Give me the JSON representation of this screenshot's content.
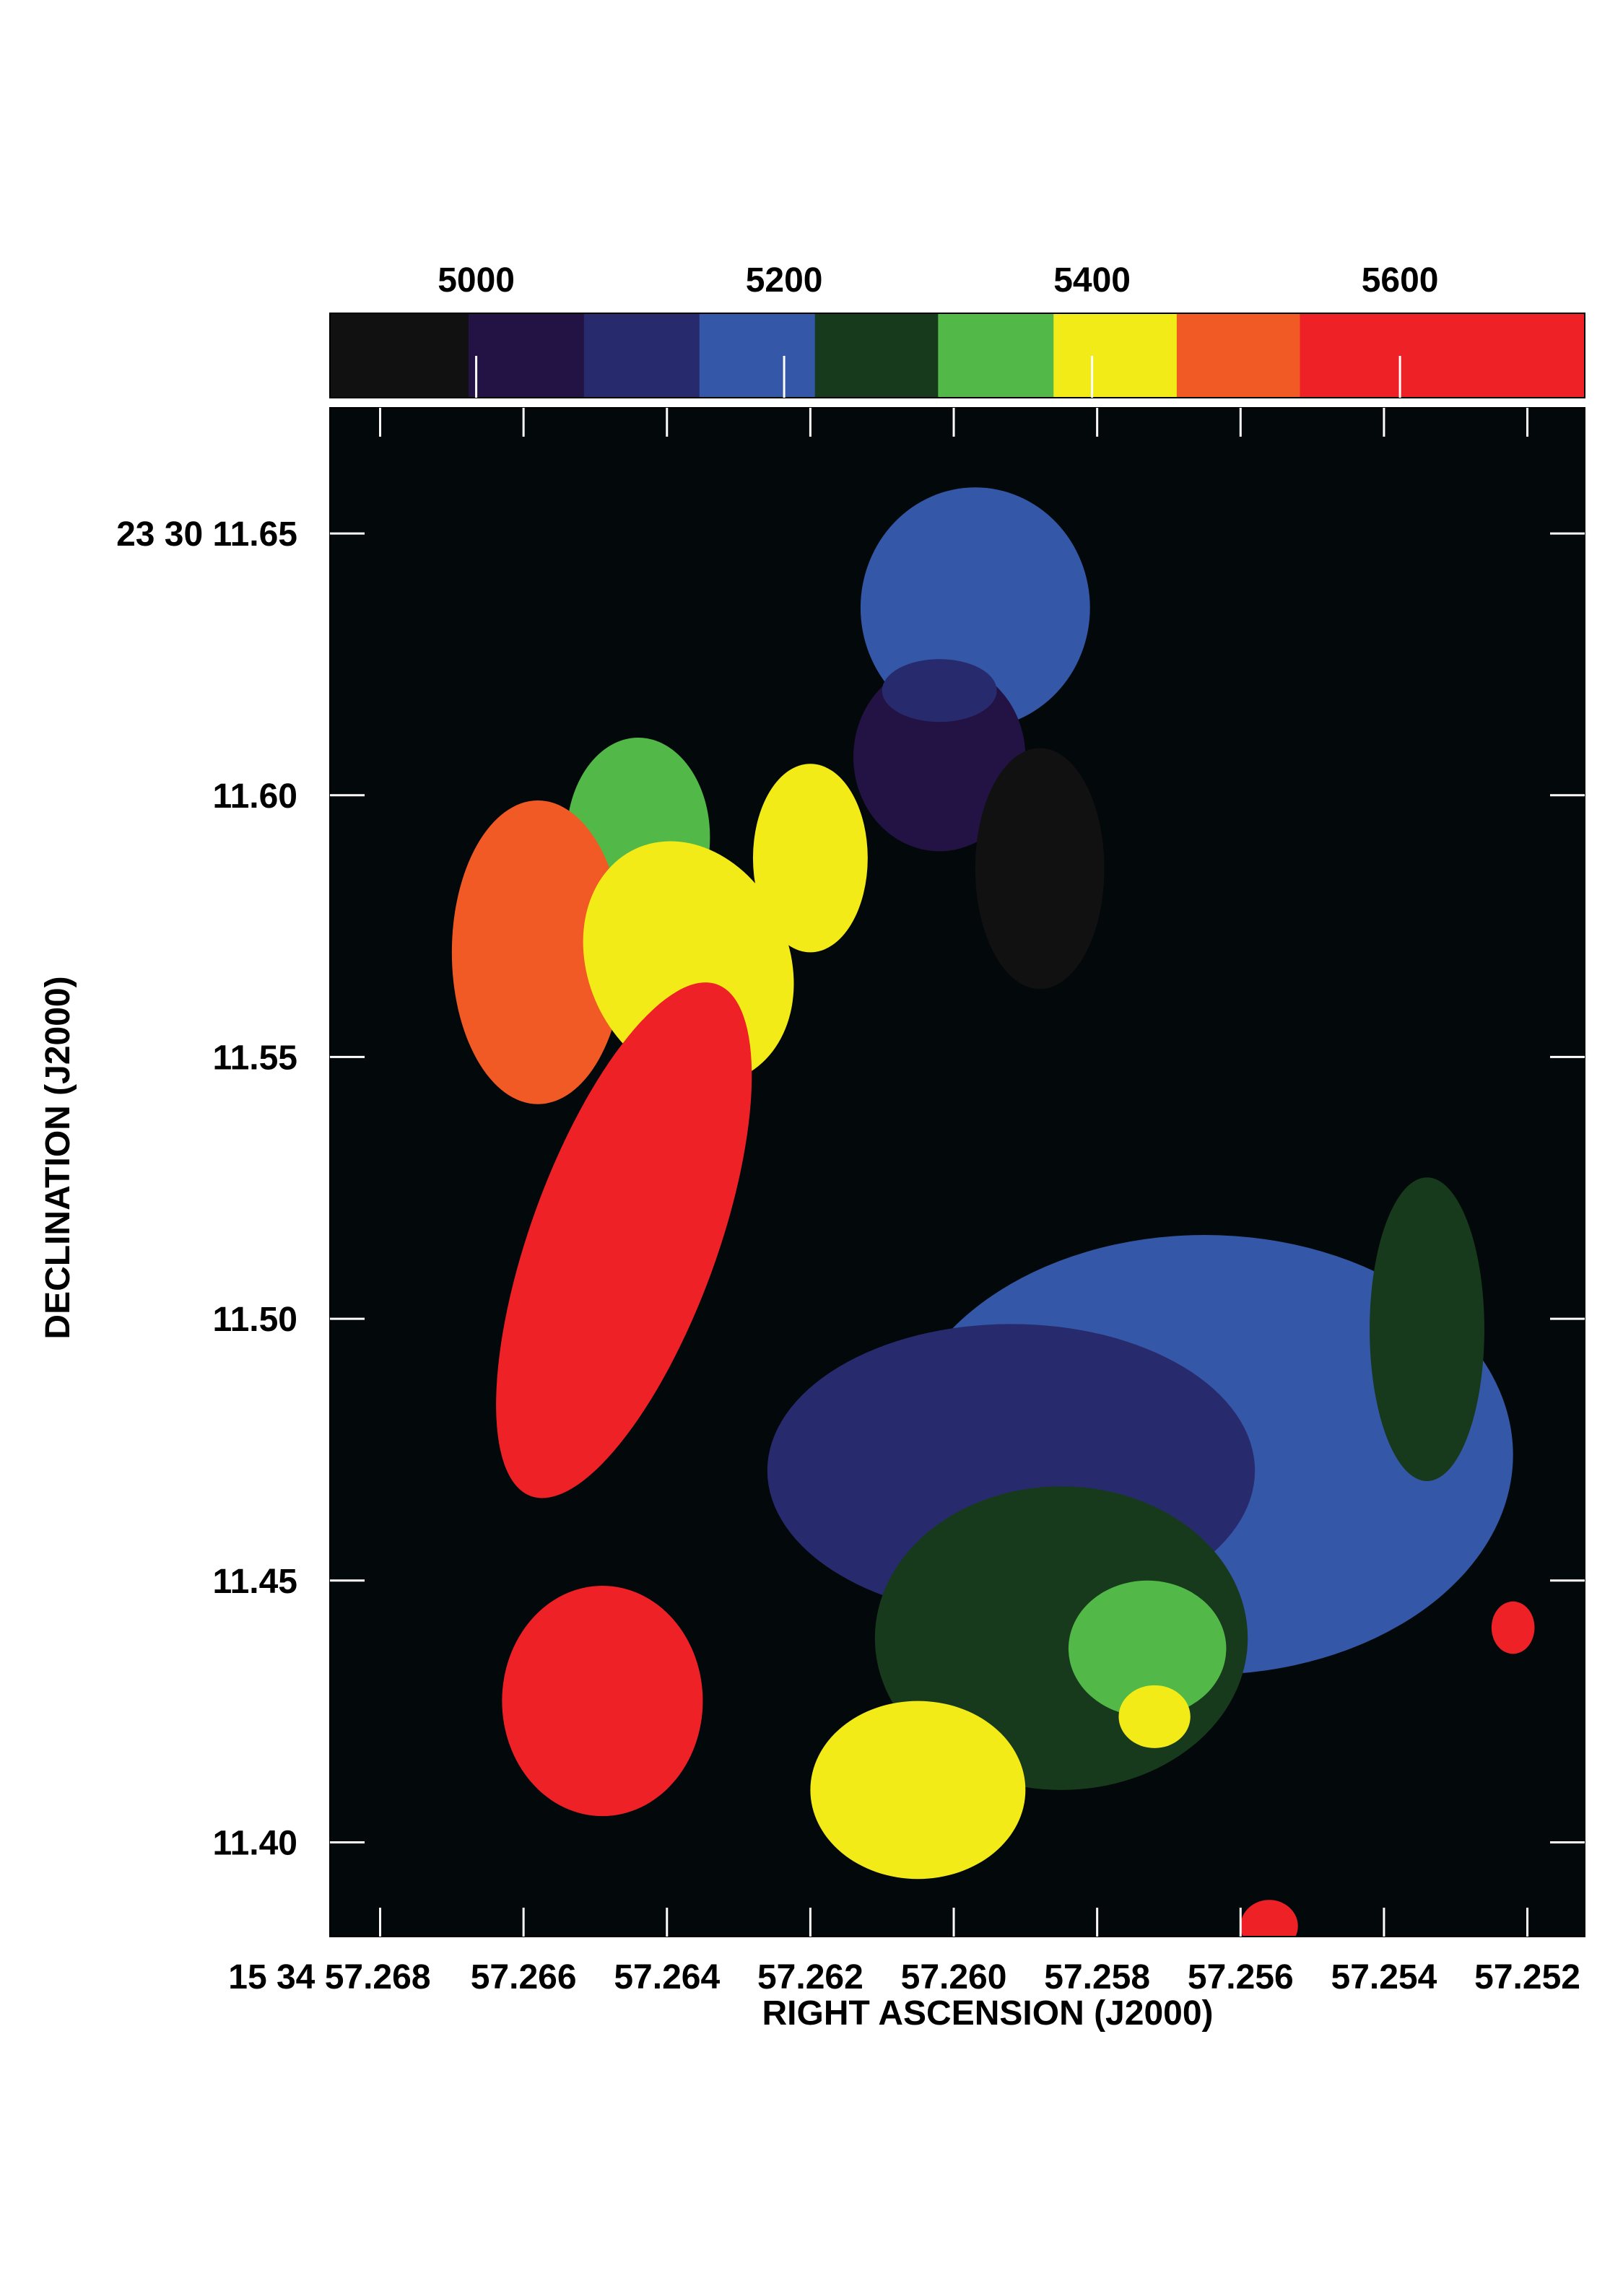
{
  "chart_data": {
    "type": "heatmap",
    "title": "",
    "xlabel": "RIGHT ASCENSION (J2000)",
    "ylabel": "DECLINATION (J2000)",
    "x_tick_labels": [
      "15 34 57.268",
      "57.266",
      "57.264",
      "57.262",
      "57.260",
      "57.258",
      "57.256",
      "57.254",
      "57.252"
    ],
    "x_tick_values": [
      57.268,
      57.266,
      57.264,
      57.262,
      57.26,
      57.258,
      57.256,
      57.254,
      57.252
    ],
    "y_tick_labels": [
      "23 30 11.65",
      "11.60",
      "11.55",
      "11.50",
      "11.45",
      "11.40"
    ],
    "y_tick_values": [
      11.65,
      11.6,
      11.55,
      11.5,
      11.45,
      11.4
    ],
    "xlim": [
      57.2687,
      57.2512
    ],
    "ylim": [
      11.382,
      11.674
    ],
    "background_color": "#03080a",
    "colorbar": {
      "tick_labels": [
        "5000",
        "5200",
        "5400",
        "5600"
      ],
      "tick_values": [
        5000,
        5200,
        5400,
        5600
      ],
      "range": [
        4905,
        5720
      ],
      "bins": [
        {
          "from": 4905,
          "to": 4995,
          "color": "#111111"
        },
        {
          "from": 4995,
          "to": 5070,
          "color": "#231345"
        },
        {
          "from": 5070,
          "to": 5145,
          "color": "#272b6e"
        },
        {
          "from": 5145,
          "to": 5220,
          "color": "#3457a7"
        },
        {
          "from": 5220,
          "to": 5300,
          "color": "#183a1c"
        },
        {
          "from": 5300,
          "to": 5375,
          "color": "#52b948"
        },
        {
          "from": 5375,
          "to": 5455,
          "color": "#f3eb18"
        },
        {
          "from": 5455,
          "to": 5535,
          "color": "#f15a24"
        },
        {
          "from": 5535,
          "to": 5720,
          "color": "#ee2126"
        }
      ]
    },
    "regions": [
      {
        "value": 5180,
        "color": "#3457a7",
        "ra": 57.2597,
        "dec": 11.6358,
        "rx": 0.0016,
        "ry": 0.023,
        "angle": 0
      },
      {
        "value": 5040,
        "color": "#231345",
        "ra": 57.2602,
        "dec": 11.6073,
        "rx": 0.0012,
        "ry": 0.018,
        "angle": 0
      },
      {
        "value": 5120,
        "color": "#272b6e",
        "ra": 57.2602,
        "dec": 11.62,
        "rx": 0.0008,
        "ry": 0.006,
        "angle": 0
      },
      {
        "value": 4950,
        "color": "#111111",
        "ra": 57.2588,
        "dec": 11.586,
        "rx": 0.0009,
        "ry": 0.023,
        "angle": 0
      },
      {
        "value": 5340,
        "color": "#52b948",
        "ra": 57.2644,
        "dec": 11.592,
        "rx": 0.001,
        "ry": 0.019,
        "angle": 0
      },
      {
        "value": 5500,
        "color": "#f15a24",
        "ra": 57.2658,
        "dec": 11.57,
        "rx": 0.0012,
        "ry": 0.029,
        "angle": 0
      },
      {
        "value": 5420,
        "color": "#f3eb18",
        "ra": 57.2637,
        "dec": 11.568,
        "rx": 0.0014,
        "ry": 0.024,
        "angle": -25
      },
      {
        "value": 5420,
        "color": "#f3eb18",
        "ra": 57.262,
        "dec": 11.588,
        "rx": 0.0008,
        "ry": 0.018,
        "angle": 0
      },
      {
        "value": 5600,
        "color": "#ee2126",
        "ra": 57.2646,
        "dec": 11.515,
        "rx": 0.0013,
        "ry": 0.052,
        "angle": 20
      },
      {
        "value": 5600,
        "color": "#ee2126",
        "ra": 57.2649,
        "dec": 11.427,
        "rx": 0.0014,
        "ry": 0.022,
        "angle": 0
      },
      {
        "value": 5600,
        "color": "#ee2126",
        "ra": 57.2522,
        "dec": 11.441,
        "rx": 0.0003,
        "ry": 0.005,
        "angle": 0
      },
      {
        "value": 5600,
        "color": "#ee2126",
        "ra": 57.2556,
        "dec": 11.384,
        "rx": 0.0004,
        "ry": 0.005,
        "angle": 0
      },
      {
        "value": 5180,
        "color": "#3457a7",
        "ra": 57.2565,
        "dec": 11.474,
        "rx": 0.0043,
        "ry": 0.042,
        "angle": 0
      },
      {
        "value": 5110,
        "color": "#272b6e",
        "ra": 57.2592,
        "dec": 11.471,
        "rx": 0.0034,
        "ry": 0.028,
        "angle": 0
      },
      {
        "value": 5260,
        "color": "#183a1c",
        "ra": 57.2534,
        "dec": 11.498,
        "rx": 0.0008,
        "ry": 0.029,
        "angle": 0
      },
      {
        "value": 5260,
        "color": "#183a1c",
        "ra": 57.2585,
        "dec": 11.439,
        "rx": 0.0026,
        "ry": 0.029,
        "angle": 0
      },
      {
        "value": 5340,
        "color": "#52b948",
        "ra": 57.2573,
        "dec": 11.437,
        "rx": 0.0011,
        "ry": 0.013,
        "angle": 0
      },
      {
        "value": 5420,
        "color": "#f3eb18",
        "ra": 57.2605,
        "dec": 11.41,
        "rx": 0.0015,
        "ry": 0.017,
        "angle": 0
      },
      {
        "value": 5420,
        "color": "#f3eb18",
        "ra": 57.2572,
        "dec": 11.424,
        "rx": 0.0005,
        "ry": 0.006,
        "angle": 0
      }
    ]
  }
}
